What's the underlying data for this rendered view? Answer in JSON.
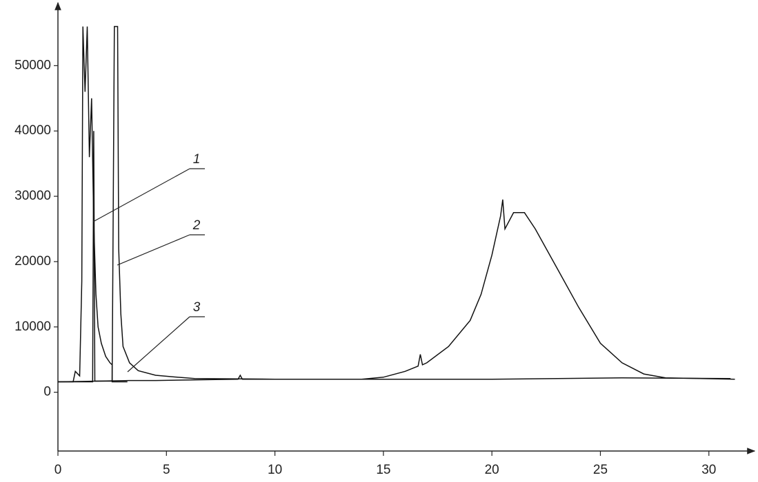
{
  "chart_data": {
    "type": "line",
    "xlim": [
      0,
      32
    ],
    "ylim": [
      -9000,
      59000
    ],
    "xticks": [
      0,
      5,
      10,
      15,
      20,
      25,
      30
    ],
    "yticks": [
      0,
      10000,
      20000,
      30000,
      40000,
      50000
    ],
    "annotations": [
      "1",
      "2",
      "3"
    ],
    "series": [
      {
        "color": "#111111",
        "x": [
          0,
          0.7,
          0.8,
          1.0,
          1.1,
          1.15,
          1.25,
          1.35,
          1.45,
          1.55,
          1.65,
          1.75,
          1.85,
          2.0,
          2.2,
          2.4,
          2.5,
          2.5,
          3.2
        ],
        "values": [
          1600,
          1600,
          3200,
          2500,
          17000,
          56000,
          46000,
          56000,
          36000,
          45000,
          26000,
          15000,
          10000,
          7500,
          5500,
          4500,
          4200,
          1600,
          1600
        ]
      },
      {
        "color": "#111111",
        "x": [
          0,
          1.6,
          1.65,
          1.7,
          2.5,
          2.6,
          2.75,
          2.8,
          2.9,
          3.0,
          3.3,
          3.7,
          4.5,
          5.5,
          6.3,
          10,
          20,
          26,
          31
        ],
        "values": [
          1600,
          1600,
          40000,
          1700,
          1700,
          56000,
          56000,
          22000,
          12000,
          7000,
          4500,
          3300,
          2600,
          2300,
          2100,
          2000,
          2000,
          2200,
          2100
        ]
      },
      {
        "color": "#111111",
        "x": [
          0,
          3.3,
          4.5,
          8.3,
          8.4,
          8.5,
          14,
          15,
          16,
          16.6,
          16.7,
          16.8,
          17,
          18,
          19,
          19.5,
          20,
          20.4,
          20.5,
          20.6,
          21,
          21.5,
          22,
          23,
          24,
          25,
          26,
          27,
          28,
          31.2
        ],
        "values": [
          1600,
          1800,
          1800,
          2000,
          2600,
          2000,
          2000,
          2300,
          3200,
          4000,
          5800,
          4200,
          4500,
          7000,
          11000,
          15000,
          21000,
          27000,
          29500,
          25000,
          27500,
          27500,
          25000,
          19000,
          13000,
          7500,
          4500,
          2800,
          2200,
          2000
        ]
      }
    ]
  }
}
